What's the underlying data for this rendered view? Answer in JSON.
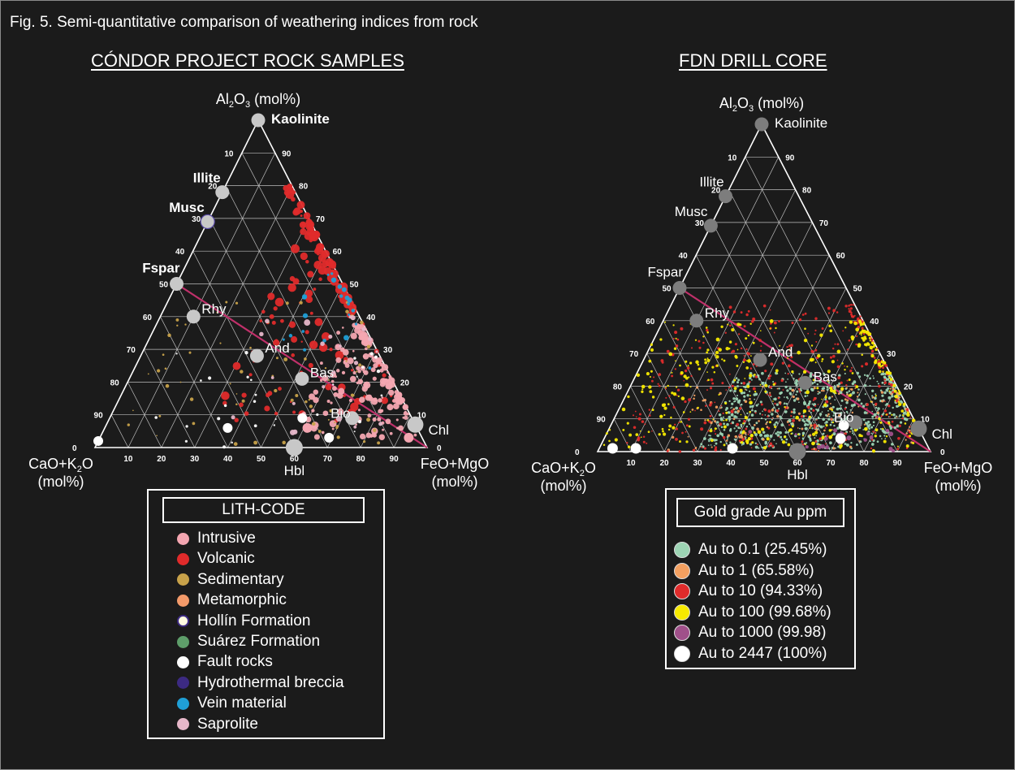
{
  "figure": {
    "caption": "Fig. 5. Semi-quantitative comparison of weathering indices from rock"
  },
  "colors": {
    "background": "#1b1b1b",
    "axis": "#ffffff",
    "grid": "#bdbdbd",
    "tie_line": "#c0306a",
    "mineral_node_left": "#c8c8c8",
    "mineral_node_right": "#7d7d7d",
    "intrusive": "#f4a6b1",
    "volcanic": "#e02b2b",
    "sedimentary": "#c8a24a",
    "metamorphic": "#f39a6a",
    "hollin": "#fffbe0",
    "suarez": "#5e9e6a",
    "fault": "#ffffff",
    "hydrothermal": "#3c2a82",
    "vein": "#1f9fd6",
    "saprolite": "#e6b7c9",
    "au_0_1": "#9dd4b4",
    "au_1": "#f4a060",
    "au_10": "#e02b2b",
    "au_100": "#f7ea00",
    "au_1000": "#a0508a",
    "au_2447": "#ffffff"
  },
  "chart_data": [
    {
      "type": "scatter",
      "subtype": "ternary",
      "title": "CÓNDOR PROJECT ROCK SAMPLES",
      "apex_top_label": "Al2O3 (mol%)",
      "apex_left_label": "CaO+K2O (mol%)",
      "apex_right_label": "FeO+MgO (mol%)",
      "bottom_axis_label": "Hbl",
      "tick_labels": [
        "10",
        "20",
        "30",
        "40",
        "50",
        "60",
        "70",
        "80",
        "90"
      ],
      "corner_zero": "0",
      "mineral_labels_bold": true,
      "minerals": [
        {
          "name": "Kaolinite",
          "a": 100,
          "m": 0,
          "f": 0
        },
        {
          "name": "Illite",
          "a": 78,
          "m": 22,
          "f": 0
        },
        {
          "name": "Musc",
          "a": 69,
          "m": 31,
          "f": 0
        },
        {
          "name": "Fspar",
          "a": 50,
          "m": 50,
          "f": 0
        },
        {
          "name": "Rhy",
          "a": 40,
          "m": 50,
          "f": 10
        },
        {
          "name": "And",
          "a": 28,
          "m": 37,
          "f": 35
        },
        {
          "name": "Bas",
          "a": 21,
          "m": 27,
          "f": 52
        },
        {
          "name": "Bio",
          "a": 9,
          "m": 18,
          "f": 73
        },
        {
          "name": "Chl",
          "a": 7,
          "m": 0,
          "f": 93
        },
        {
          "name": "Hbl",
          "a": 0,
          "m": 40,
          "f": 60
        }
      ],
      "tie_line": {
        "from": {
          "a": 50,
          "m": 50,
          "f": 0
        },
        "to": {
          "a": 0,
          "m": 0,
          "f": 100
        }
      },
      "legend": {
        "title": "LITH-CODE",
        "entries": [
          {
            "label": "Intrusive",
            "color": "#f4a6b1"
          },
          {
            "label": "Volcanic",
            "color": "#e02b2b"
          },
          {
            "label": "Sedimentary",
            "color": "#c8a24a"
          },
          {
            "label": "Metamorphic",
            "color": "#f39a6a"
          },
          {
            "label": "Hollín Formation",
            "color": "#fffbe0"
          },
          {
            "label": "Suárez Formation",
            "color": "#5e9e6a"
          },
          {
            "label": "Fault rocks",
            "color": "#ffffff"
          },
          {
            "label": "Hydrothermal breccia",
            "color": "#3c2a82"
          },
          {
            "label": "Vein material",
            "color": "#1f9fd6"
          },
          {
            "label": "Saprolite",
            "color": "#e6b7c9"
          }
        ]
      },
      "point_clusters": [
        {
          "class": "Volcanic",
          "color": "#e02b2b",
          "n": 170,
          "a_range": [
            8,
            80
          ],
          "f_range": [
            30,
            95
          ],
          "size_range": [
            1.2,
            5.5
          ]
        },
        {
          "class": "Intrusive",
          "color": "#f4a6b1",
          "n": 160,
          "a_range": [
            3,
            38
          ],
          "f_range": [
            55,
            97
          ],
          "size_range": [
            1.2,
            4.5
          ]
        },
        {
          "class": "Sedimentary",
          "color": "#c8a24a",
          "n": 70,
          "a_range": [
            1,
            45
          ],
          "f_range": [
            5,
            85
          ],
          "size_range": [
            0.8,
            2.5
          ]
        },
        {
          "class": "Vein material",
          "color": "#1f9fd6",
          "n": 22,
          "a_range": [
            20,
            55
          ],
          "f_range": [
            40,
            80
          ],
          "size_range": [
            1.5,
            3.5
          ]
        },
        {
          "class": "Fault rocks",
          "color": "#ffffff",
          "n": 30,
          "a_range": [
            0,
            30
          ],
          "f_range": [
            5,
            90
          ],
          "size_range": [
            1,
            2.2
          ]
        },
        {
          "class": "Saprolite",
          "color": "#e6b7c9",
          "n": 24,
          "a_range": [
            3,
            40
          ],
          "f_range": [
            30,
            90
          ],
          "size_range": [
            1.5,
            4
          ]
        }
      ],
      "large_points": [
        {
          "class": "Fault rocks",
          "color": "#ffffff",
          "a": 2,
          "m": 98,
          "f": 0
        },
        {
          "class": "Fault rocks",
          "color": "#ffffff",
          "a": 6,
          "m": 57,
          "f": 37
        },
        {
          "class": "Fault rocks",
          "color": "#ffffff",
          "a": 9,
          "m": 33,
          "f": 58
        },
        {
          "class": "Fault rocks",
          "color": "#ffffff",
          "a": 3,
          "m": 28,
          "f": 69
        },
        {
          "class": "Intrusive",
          "color": "#f4a6b1",
          "a": 6,
          "m": 33,
          "f": 61
        },
        {
          "class": "Intrusive",
          "color": "#f4a6b1",
          "a": 3,
          "m": 4,
          "f": 93
        }
      ]
    },
    {
      "type": "scatter",
      "subtype": "ternary",
      "title": "FDN DRILL CORE",
      "apex_top_label": "Al2O3 (mol%)",
      "apex_left_label": "CaO+K2O (mol%)",
      "apex_right_label": "FeO+MgO (mol%)",
      "bottom_axis_label": "Hbl",
      "tick_labels": [
        "10",
        "20",
        "30",
        "40",
        "50",
        "60",
        "70",
        "80",
        "90"
      ],
      "corner_zero": "0",
      "mineral_labels_bold": false,
      "minerals": [
        {
          "name": "Kaolinite",
          "a": 100,
          "m": 0,
          "f": 0
        },
        {
          "name": "Illite",
          "a": 78,
          "m": 22,
          "f": 0
        },
        {
          "name": "Musc",
          "a": 69,
          "m": 31,
          "f": 0
        },
        {
          "name": "Fspar",
          "a": 50,
          "m": 50,
          "f": 0
        },
        {
          "name": "Rhy",
          "a": 40,
          "m": 50,
          "f": 10
        },
        {
          "name": "And",
          "a": 28,
          "m": 37,
          "f": 35
        },
        {
          "name": "Bas",
          "a": 21,
          "m": 27,
          "f": 52
        },
        {
          "name": "Bio",
          "a": 9,
          "m": 18,
          "f": 73
        },
        {
          "name": "Chl",
          "a": 7,
          "m": 0,
          "f": 93
        },
        {
          "name": "Hbl",
          "a": 0,
          "m": 40,
          "f": 60
        }
      ],
      "tie_line": {
        "from": {
          "a": 50,
          "m": 50,
          "f": 0
        },
        "to": {
          "a": 0,
          "m": 0,
          "f": 100
        }
      },
      "legend": {
        "title": "Gold grade Au ppm",
        "entries": [
          {
            "label": "Au to 0.1 (25.45%)",
            "color": "#9dd4b4"
          },
          {
            "label": "Au to 1 (65.58%)",
            "color": "#f4a060"
          },
          {
            "label": "Au to 10 (94.33%)",
            "color": "#e02b2b"
          },
          {
            "label": "Au to 100 (99.68%)",
            "color": "#f7ea00"
          },
          {
            "label": "Au to 1000 (99.98)",
            "color": "#a0508a"
          },
          {
            "label": "Au to 2447 (100%)",
            "color": "#ffffff"
          }
        ]
      },
      "point_clusters": [
        {
          "class": "Au to 0.1",
          "color": "#9dd4b4",
          "n": 650,
          "a_range": [
            1,
            24
          ],
          "f_range": [
            30,
            88
          ],
          "size_range": [
            0.8,
            2
          ]
        },
        {
          "class": "Au to 1",
          "color": "#f4a060",
          "n": 140,
          "a_range": [
            0,
            20
          ],
          "f_range": [
            20,
            95
          ],
          "size_range": [
            0.8,
            1.8
          ]
        },
        {
          "class": "Au to 10",
          "color": "#e02b2b",
          "n": 380,
          "a_range": [
            0,
            45
          ],
          "f_range": [
            5,
            96
          ],
          "size_range": [
            0.8,
            2
          ]
        },
        {
          "class": "Au to 100",
          "color": "#f7ea00",
          "n": 360,
          "a_range": [
            0,
            40
          ],
          "f_range": [
            0,
            95
          ],
          "size_range": [
            0.8,
            2.4
          ]
        },
        {
          "class": "Au to 1000",
          "color": "#a0508a",
          "n": 20,
          "a_range": [
            0,
            8
          ],
          "f_range": [
            40,
            95
          ],
          "size_range": [
            1.5,
            3
          ]
        }
      ],
      "large_points": [
        {
          "class": "Au to 2447",
          "color": "#ffffff",
          "a": 1,
          "m": 95,
          "f": 4
        },
        {
          "class": "Au to 2447",
          "color": "#ffffff",
          "a": 1,
          "m": 88,
          "f": 11
        },
        {
          "class": "Au to 2447",
          "color": "#ffffff",
          "a": 1,
          "m": 59,
          "f": 40
        },
        {
          "class": "Au to 2447",
          "color": "#ffffff",
          "a": 4,
          "m": 25,
          "f": 71
        },
        {
          "class": "Au to 2447",
          "color": "#ffffff",
          "a": 8,
          "m": 22,
          "f": 70
        }
      ]
    }
  ]
}
